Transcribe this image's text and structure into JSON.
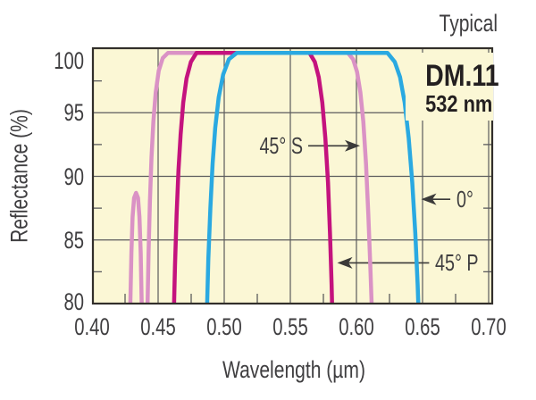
{
  "header": {
    "title": "Typical"
  },
  "product": {
    "model": "DM.11",
    "wavelength": "532 nm"
  },
  "colors": {
    "page_background": "#ffffff",
    "plot_background": "#FBF7D5",
    "grid": "#5b5b5d",
    "border": "#322f2b",
    "text": "#3f3e40",
    "text_dark": "#231F20",
    "arrow": "#3b3a39",
    "series_45S": "#DA92C5",
    "series_45P": "#C4137E",
    "series_0deg": "#2AA9E1"
  },
  "chart_data": {
    "type": "line",
    "title": "Typical",
    "xlabel": "Wavelength (µm)",
    "ylabel": "Reflectance (%)",
    "xlim": [
      0.4,
      0.7
    ],
    "ylim": [
      80,
      100
    ],
    "grid": true,
    "x_ticks": {
      "values": [
        0.4,
        0.45,
        0.5,
        0.55,
        0.6,
        0.65,
        0.7
      ],
      "labels": [
        "0.40",
        "0.45",
        "0.50",
        "0.55",
        "0.60",
        "0.65",
        "0.70"
      ]
    },
    "x_minor_ticks": [
      0.425,
      0.475,
      0.525,
      0.575,
      0.625,
      0.675
    ],
    "y_ticks": {
      "values": [
        100,
        95,
        90,
        85,
        80
      ],
      "labels": [
        "100",
        "95",
        "90",
        "85",
        "80"
      ]
    },
    "y_minor_ticks": [
      97.5,
      92.5,
      87.5,
      82.5
    ],
    "series": [
      {
        "name": "45° S",
        "color": "#DA92C5",
        "points": [
          [
            0.4282,
            76
          ],
          [
            0.429,
            80
          ],
          [
            0.4298,
            84
          ],
          [
            0.4307,
            86.8
          ],
          [
            0.4318,
            88.3
          ],
          [
            0.4333,
            88.7
          ],
          [
            0.4348,
            88.3
          ],
          [
            0.4359,
            86.8
          ],
          [
            0.4368,
            84
          ],
          [
            0.4376,
            80
          ],
          [
            0.4384,
            76
          ],
          [
            0.4392,
            72
          ],
          [
            0.4404,
            72
          ],
          [
            0.4412,
            76
          ],
          [
            0.442,
            80
          ],
          [
            0.4428,
            84
          ],
          [
            0.4438,
            88
          ],
          [
            0.445,
            91.5
          ],
          [
            0.4464,
            94.3
          ],
          [
            0.4482,
            96.6
          ],
          [
            0.4505,
            98.3
          ],
          [
            0.4535,
            99.3
          ],
          [
            0.4575,
            99.8
          ],
          [
            0.464,
            100
          ],
          [
            0.588,
            100
          ],
          [
            0.5935,
            99.8
          ],
          [
            0.5975,
            99.2
          ],
          [
            0.6005,
            98.2
          ],
          [
            0.603,
            96.6
          ],
          [
            0.6052,
            94.3
          ],
          [
            0.6072,
            91
          ],
          [
            0.609,
            87
          ],
          [
            0.6105,
            83
          ],
          [
            0.6118,
            79
          ],
          [
            0.6128,
            75
          ]
        ]
      },
      {
        "name": "45° P",
        "color": "#C4137E",
        "points": [
          [
            0.4608,
            75
          ],
          [
            0.4618,
            79
          ],
          [
            0.4628,
            83
          ],
          [
            0.464,
            87
          ],
          [
            0.4654,
            90.5
          ],
          [
            0.467,
            93.3
          ],
          [
            0.469,
            95.8
          ],
          [
            0.4715,
            97.7
          ],
          [
            0.4748,
            99
          ],
          [
            0.479,
            99.7
          ],
          [
            0.486,
            100
          ],
          [
            0.559,
            100
          ],
          [
            0.5645,
            99.7
          ],
          [
            0.5685,
            99
          ],
          [
            0.5715,
            97.8
          ],
          [
            0.5742,
            95.8
          ],
          [
            0.5765,
            93
          ],
          [
            0.5785,
            89.5
          ],
          [
            0.58,
            85.5
          ],
          [
            0.5812,
            81.5
          ],
          [
            0.5822,
            77
          ]
        ]
      },
      {
        "name": "0°",
        "color": "#2AA9E1",
        "points": [
          [
            0.4858,
            75
          ],
          [
            0.4868,
            79
          ],
          [
            0.488,
            83.5
          ],
          [
            0.4895,
            87.5
          ],
          [
            0.4912,
            91
          ],
          [
            0.4932,
            93.8
          ],
          [
            0.4958,
            96.2
          ],
          [
            0.4992,
            98
          ],
          [
            0.5035,
            99.2
          ],
          [
            0.5095,
            99.8
          ],
          [
            0.517,
            100
          ],
          [
            0.616,
            100
          ],
          [
            0.6235,
            99.7
          ],
          [
            0.629,
            99
          ],
          [
            0.633,
            97.8
          ],
          [
            0.6365,
            95.8
          ],
          [
            0.6395,
            93
          ],
          [
            0.6422,
            89.5
          ],
          [
            0.6445,
            85.5
          ],
          [
            0.6463,
            81.5
          ],
          [
            0.6478,
            77
          ]
        ]
      }
    ],
    "annotations": [
      {
        "label": "45° S",
        "series": "45° S",
        "direction": "right",
        "arrow_from": [
          0.5635,
          92.4
        ],
        "arrow_to": [
          0.6027,
          92.4
        ]
      },
      {
        "label": "0°",
        "series": "0°",
        "direction": "left",
        "arrow_from": [
          0.671,
          88.2
        ],
        "arrow_to": [
          0.649,
          88.2
        ]
      },
      {
        "label": "45° P",
        "series": "45° P",
        "direction": "left",
        "arrow_from": [
          0.655,
          83.2
        ],
        "arrow_to": [
          0.5855,
          83.2
        ]
      }
    ]
  }
}
